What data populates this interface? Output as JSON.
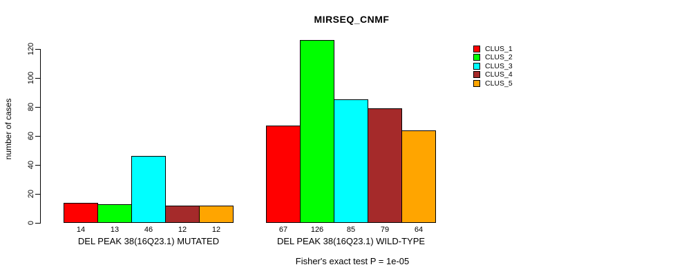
{
  "chart_data": {
    "type": "bar",
    "title": "MIRSEQ_CNMF",
    "xlabel": "",
    "ylabel": "number of cases",
    "ylim": [
      0,
      130
    ],
    "yticks": [
      0,
      20,
      40,
      60,
      80,
      100,
      120
    ],
    "grid": false,
    "legend_position": "right",
    "categories": [
      "DEL PEAK 38(16Q23.1) MUTATED",
      "DEL PEAK 38(16Q23.1) WILD-TYPE"
    ],
    "series": [
      {
        "name": "CLUS_1",
        "color": "#FF0000",
        "values": [
          14,
          67
        ]
      },
      {
        "name": "CLUS_2",
        "color": "#00FF00",
        "values": [
          13,
          126
        ]
      },
      {
        "name": "CLUS_3",
        "color": "#00FFFF",
        "values": [
          46,
          85
        ]
      },
      {
        "name": "CLUS_4",
        "color": "#A52A2A",
        "values": [
          12,
          79
        ]
      },
      {
        "name": "CLUS_5",
        "color": "#FFA500",
        "values": [
          12,
          64
        ]
      }
    ],
    "bar_value_labels": [
      [
        14,
        13,
        46,
        12,
        12
      ],
      [
        67,
        126,
        85,
        79,
        64
      ]
    ],
    "annotation": "Fisher's exact test P = 1e-05"
  }
}
